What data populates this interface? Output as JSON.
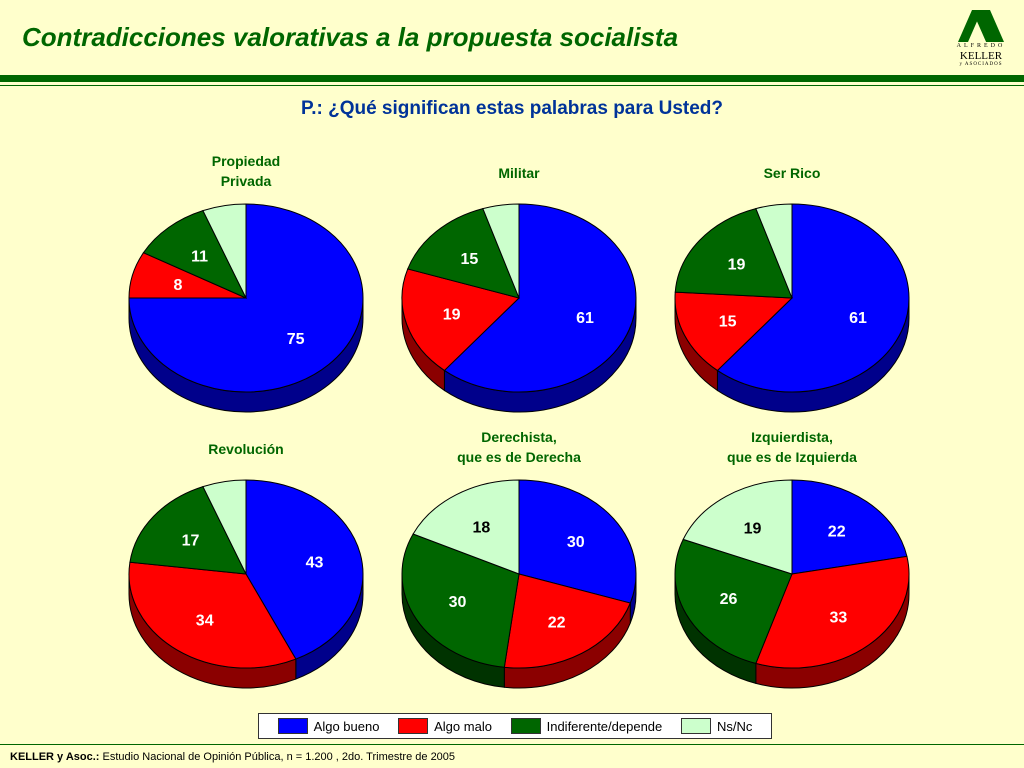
{
  "header": {
    "title": "Contradicciones valorativas a la propuesta socialista",
    "question": "P.: ¿Qué significan estas palabras para Usted?"
  },
  "logo": {
    "top_text": "ALFREDO",
    "name": "KELLER",
    "bottom_text": "y ASOCIADOS",
    "color": "#006600"
  },
  "colors": {
    "background": "#ffffcc",
    "accent": "#006600",
    "question": "#003399",
    "algo_bueno": "#0000ff",
    "algo_malo": "#ff0000",
    "indiferente": "#006600",
    "nsnc": "#ccffcc"
  },
  "chart_data": [
    {
      "type": "pie",
      "title": [
        "Propiedad",
        "Privada"
      ],
      "series": [
        {
          "name": "Algo bueno",
          "value": 75
        },
        {
          "name": "Algo malo",
          "value": 8
        },
        {
          "name": "Indiferente/depende",
          "value": 11
        },
        {
          "name": "Ns/Nc",
          "value": 6
        }
      ]
    },
    {
      "type": "pie",
      "title": [
        "Militar"
      ],
      "series": [
        {
          "name": "Algo bueno",
          "value": 61
        },
        {
          "name": "Algo malo",
          "value": 19
        },
        {
          "name": "Indiferente/depende",
          "value": 15
        },
        {
          "name": "Ns/Nc",
          "value": 5
        }
      ]
    },
    {
      "type": "pie",
      "title": [
        "Ser Rico"
      ],
      "series": [
        {
          "name": "Algo bueno",
          "value": 61
        },
        {
          "name": "Algo malo",
          "value": 15
        },
        {
          "name": "Indiferente/depende",
          "value": 19
        },
        {
          "name": "Ns/Nc",
          "value": 5
        }
      ]
    },
    {
      "type": "pie",
      "title": [
        "Revolución"
      ],
      "series": [
        {
          "name": "Algo bueno",
          "value": 43
        },
        {
          "name": "Algo malo",
          "value": 34
        },
        {
          "name": "Indiferente/depende",
          "value": 17
        },
        {
          "name": "Ns/Nc",
          "value": 6
        }
      ]
    },
    {
      "type": "pie",
      "title": [
        "Derechista,",
        "que es de Derecha"
      ],
      "series": [
        {
          "name": "Algo bueno",
          "value": 30
        },
        {
          "name": "Algo malo",
          "value": 22
        },
        {
          "name": "Indiferente/depende",
          "value": 30
        },
        {
          "name": "Ns/Nc",
          "value": 18
        }
      ]
    },
    {
      "type": "pie",
      "title": [
        "Izquierdista,",
        "que es de Izquierda"
      ],
      "series": [
        {
          "name": "Algo bueno",
          "value": 22
        },
        {
          "name": "Algo malo",
          "value": 33
        },
        {
          "name": "Indiferente/depende",
          "value": 26
        },
        {
          "name": "Ns/Nc",
          "value": 19
        }
      ]
    }
  ],
  "legend": [
    {
      "label": "Algo bueno",
      "color": "#0000ff"
    },
    {
      "label": "Algo malo",
      "color": "#ff0000"
    },
    {
      "label": "Indiferente/depende",
      "color": "#006600"
    },
    {
      "label": "Ns/Nc",
      "color": "#ccffcc"
    }
  ],
  "footer": {
    "source_label": "KELLER y Asoc.:",
    "source_text": " Estudio Nacional de Opinión Pública, n = 1.200 , 2do. Trimestre de 2005"
  }
}
